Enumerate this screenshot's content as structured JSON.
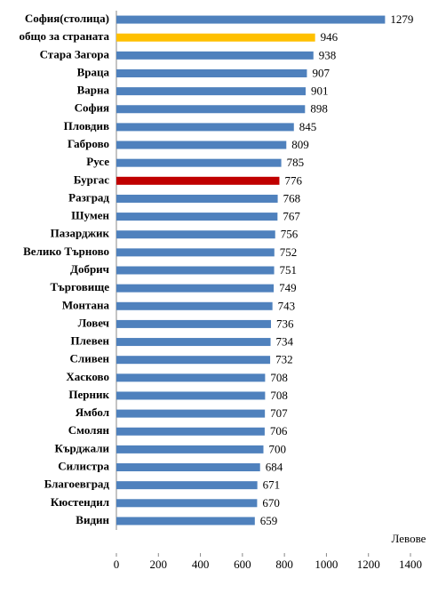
{
  "chart_data": {
    "type": "hbar",
    "x_label": "Левове",
    "categories": [
      "София(столица)",
      "общо за страната",
      "Стара Загора",
      "Враца",
      "Варна",
      "София",
      "Пловдив",
      "Габрово",
      "Русе",
      "Бургас",
      "Разград",
      "Шумен",
      "Пазарджик",
      "Велико Търново",
      "Добрич",
      "Търговище",
      "Монтана",
      "Ловеч",
      "Плевен",
      "Сливен",
      "Хасково",
      "Перник",
      "Ямбол",
      "Смолян",
      "Кърджали",
      "Силистра",
      "Благоевград",
      "Кюстендил",
      "Видин"
    ],
    "values": [
      1279,
      946,
      938,
      907,
      901,
      898,
      845,
      809,
      785,
      776,
      768,
      767,
      756,
      752,
      751,
      749,
      743,
      736,
      734,
      732,
      708,
      708,
      707,
      706,
      700,
      684,
      671,
      670,
      659
    ],
    "colors": [
      "#4f81bd",
      "#ffc000",
      "#4f81bd",
      "#4f81bd",
      "#4f81bd",
      "#4f81bd",
      "#4f81bd",
      "#4f81bd",
      "#4f81bd",
      "#c00000",
      "#4f81bd",
      "#4f81bd",
      "#4f81bd",
      "#4f81bd",
      "#4f81bd",
      "#4f81bd",
      "#4f81bd",
      "#4f81bd",
      "#4f81bd",
      "#4f81bd",
      "#4f81bd",
      "#4f81bd",
      "#4f81bd",
      "#4f81bd",
      "#4f81bd",
      "#4f81bd",
      "#4f81bd",
      "#4f81bd",
      "#4f81bd"
    ],
    "xlim": [
      0,
      1400
    ],
    "xticks": [
      0,
      200,
      400,
      600,
      800,
      1000,
      1200,
      1400
    ]
  }
}
